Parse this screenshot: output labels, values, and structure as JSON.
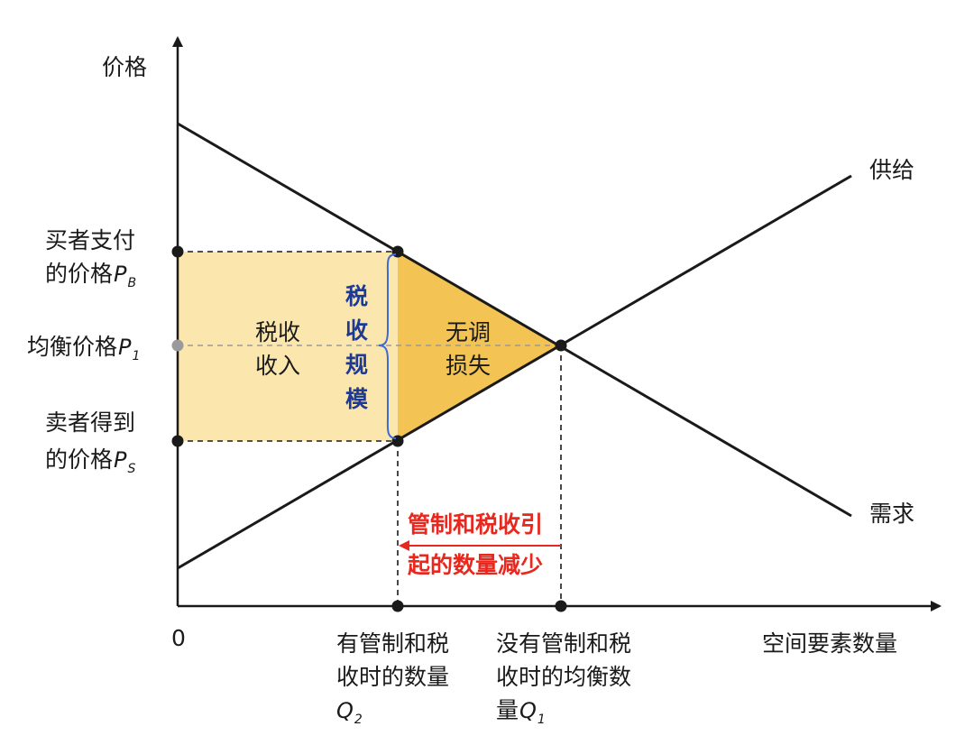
{
  "axes": {
    "y_label": "价格",
    "x_label": "空间要素数量",
    "origin_label": "0"
  },
  "curves": {
    "supply_label": "供给",
    "demand_label": "需求"
  },
  "price_labels": {
    "buyer_line1": "买者支付",
    "buyer_line2": "的价格",
    "buyer_symbol": "P",
    "buyer_sub": "B",
    "eq": "均衡价格",
    "eq_symbol": "P",
    "eq_sub": "1",
    "seller_line1": "卖者得到",
    "seller_line2": "的价格",
    "seller_symbol": "P",
    "seller_sub": "S"
  },
  "areas": {
    "revenue_line1": "税收",
    "revenue_line2": "收入",
    "deadweight_line1": "无调",
    "deadweight_line2": "损失"
  },
  "tax_size": [
    "税",
    "收",
    "规",
    "模"
  ],
  "quantity_reduction": {
    "line1": "管制和税收引",
    "line2": "起的数量减少"
  },
  "x_labels": {
    "q2_line1": "有管制和税",
    "q2_line2": "收时的数量",
    "q2_symbol": "Q",
    "q2_sub": "2",
    "q1_line1": "没有管制和税",
    "q1_line2": "收时的均衡数",
    "q1_line3": "量",
    "q1_symbol": "Q",
    "q1_sub": "1"
  },
  "colors": {
    "axis": "#1a1a1a",
    "tax_revenue_fill": "#fbe7ad",
    "deadweight_fill": "#f3c453",
    "brace": "#3d6bd4",
    "tax_size_text": "#1f3a93",
    "reduction_text": "#e8281e"
  }
}
